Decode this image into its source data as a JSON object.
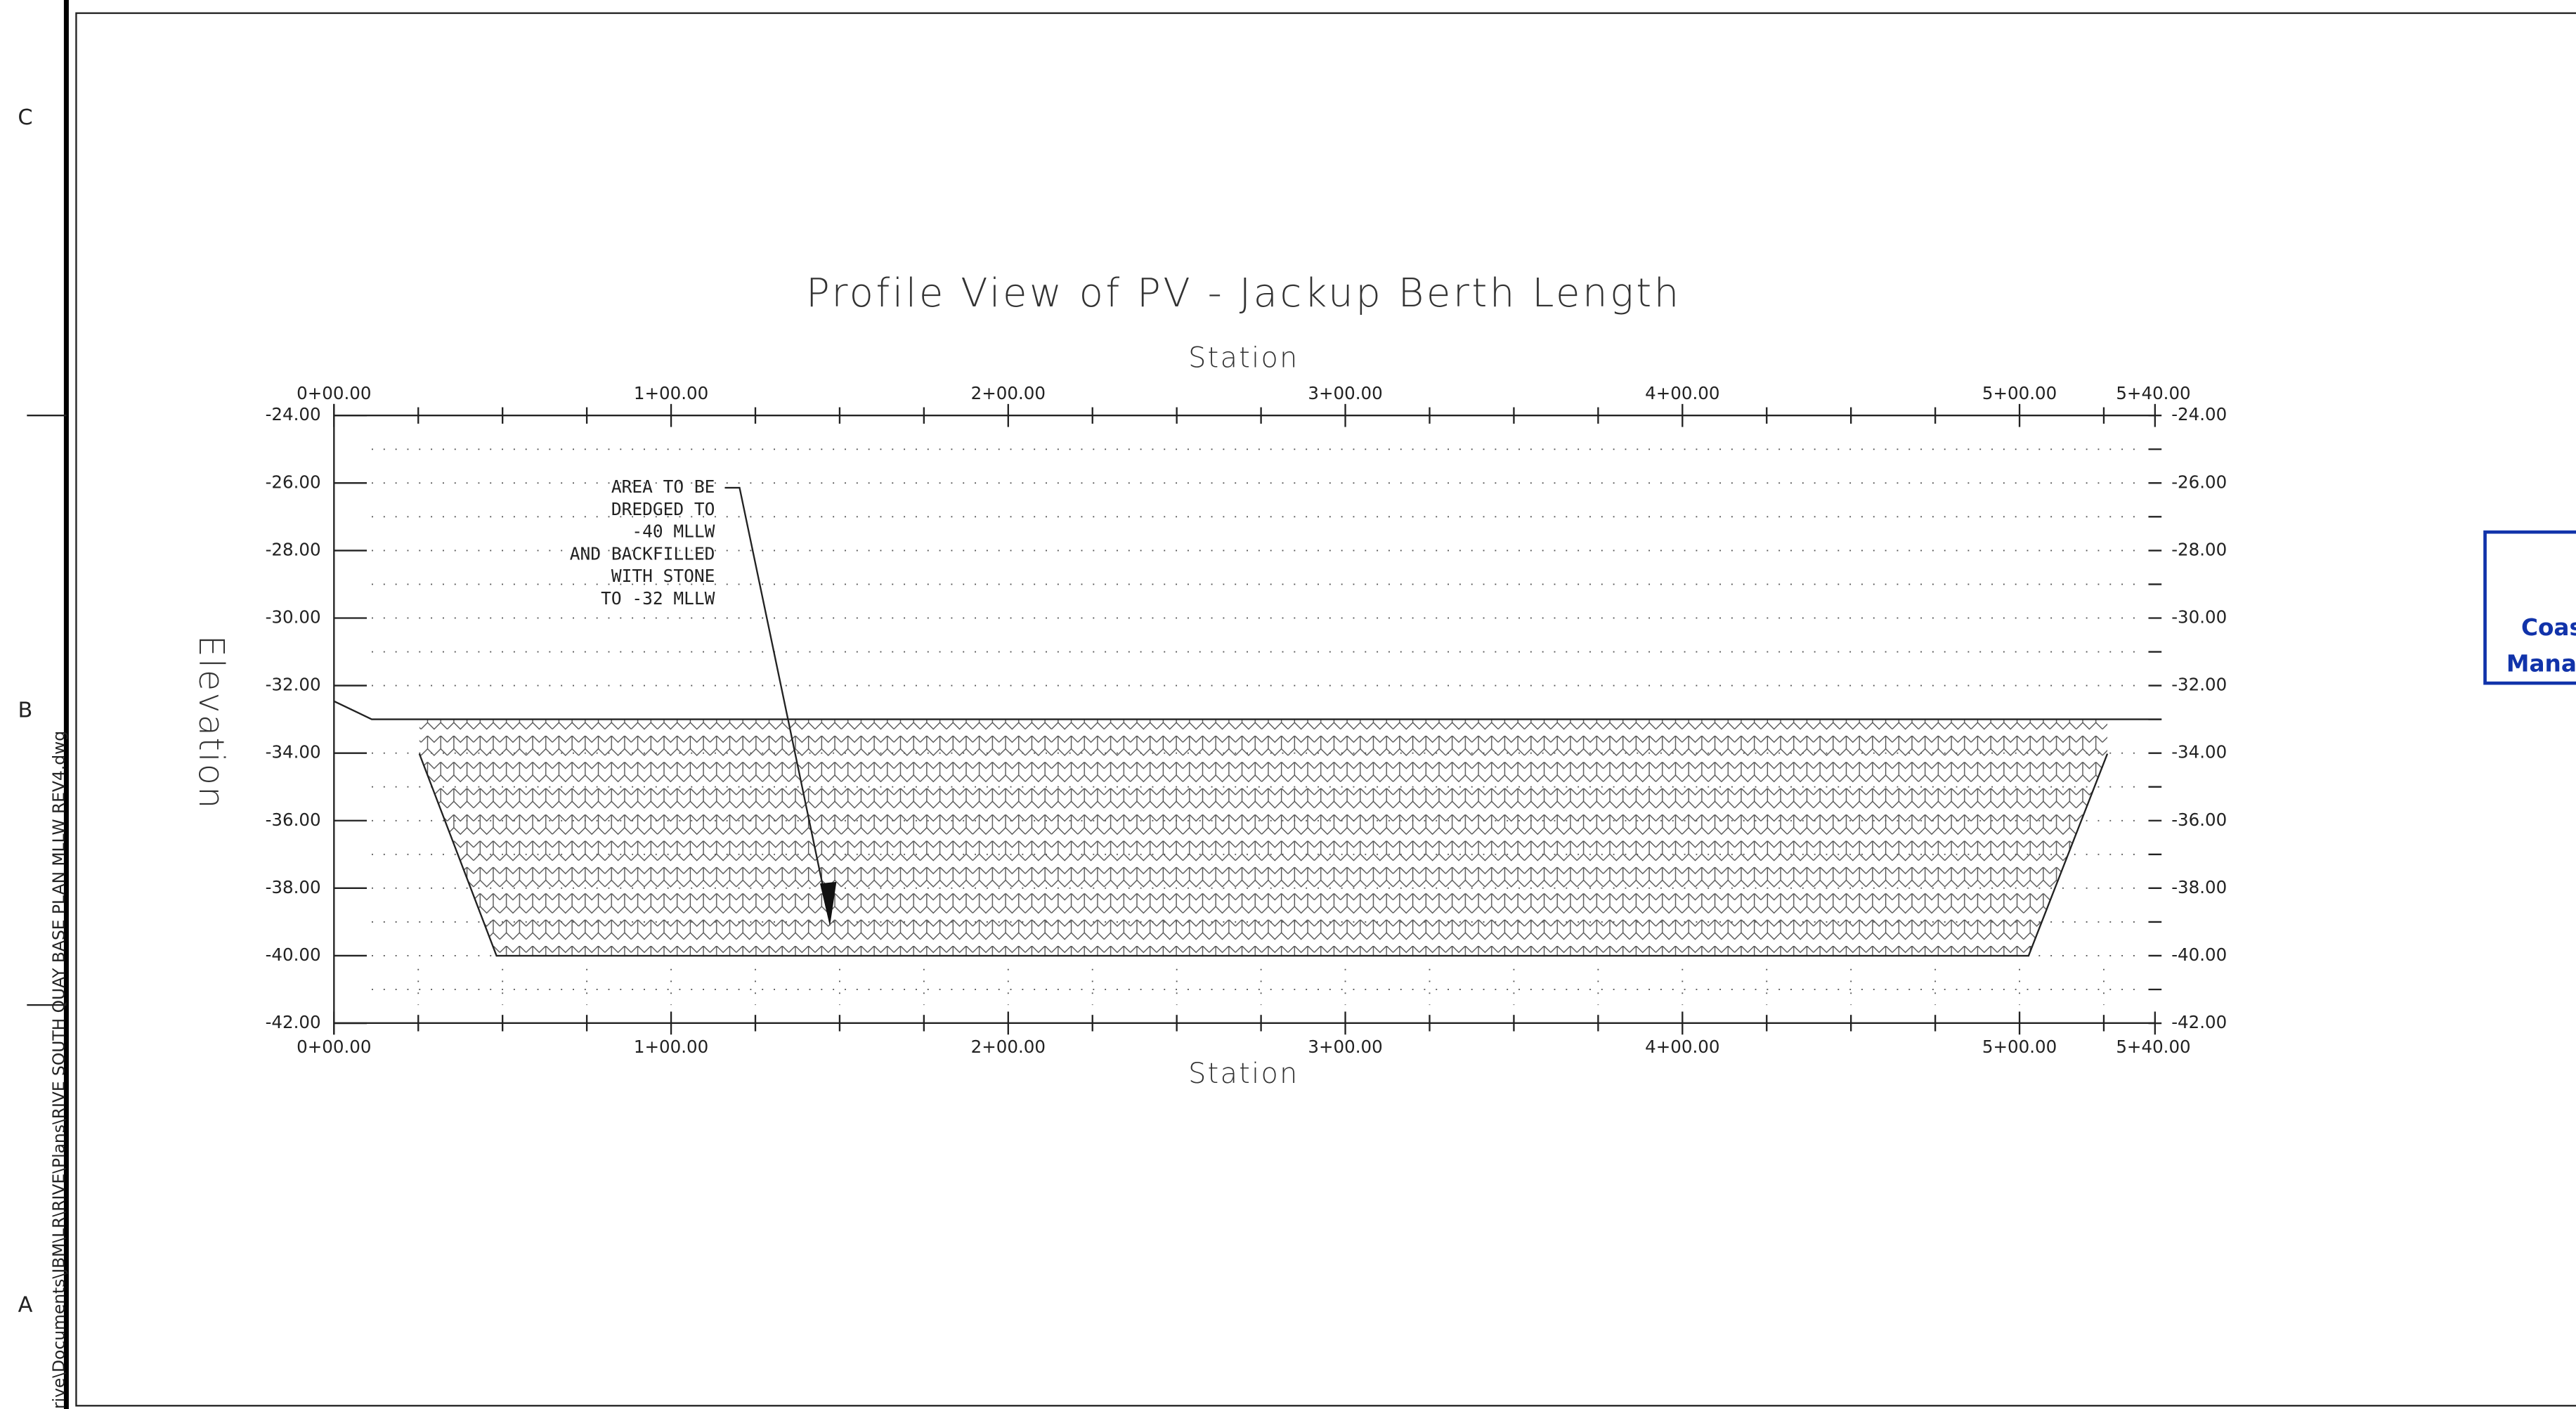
{
  "sheet": {
    "zones": [
      "C",
      "B",
      "A"
    ],
    "file_path": "rive\\Documents\\JBM\\LR\\RIVE\\Plans\\RIVE SOUTH QUAY BASE PLAN MLLW REV4.dwg"
  },
  "profile": {
    "title": "Profile View of  PV - Jackup Berth Length",
    "top_axis_label": "Station",
    "bottom_axis_label": "Station",
    "left_axis_label": "Elevation",
    "stations": [
      "0+00.00",
      "1+00.00",
      "2+00.00",
      "3+00.00",
      "4+00.00",
      "5+00.00",
      "5+40.00"
    ],
    "elevations": [
      "-24.00",
      "-26.00",
      "-28.00",
      "-30.00",
      "-32.00",
      "-34.00",
      "-36.00",
      "-38.00",
      "-40.00",
      "-42.00"
    ],
    "annotation": [
      "AREA TO BE",
      "DREDGED TO",
      "-40 MLLW",
      "AND BACKFILLED",
      "WITH STONE",
      "TO -32 MLLW"
    ]
  },
  "title_block": {
    "lines": [
      "Coas",
      "Mana"
    ]
  }
}
